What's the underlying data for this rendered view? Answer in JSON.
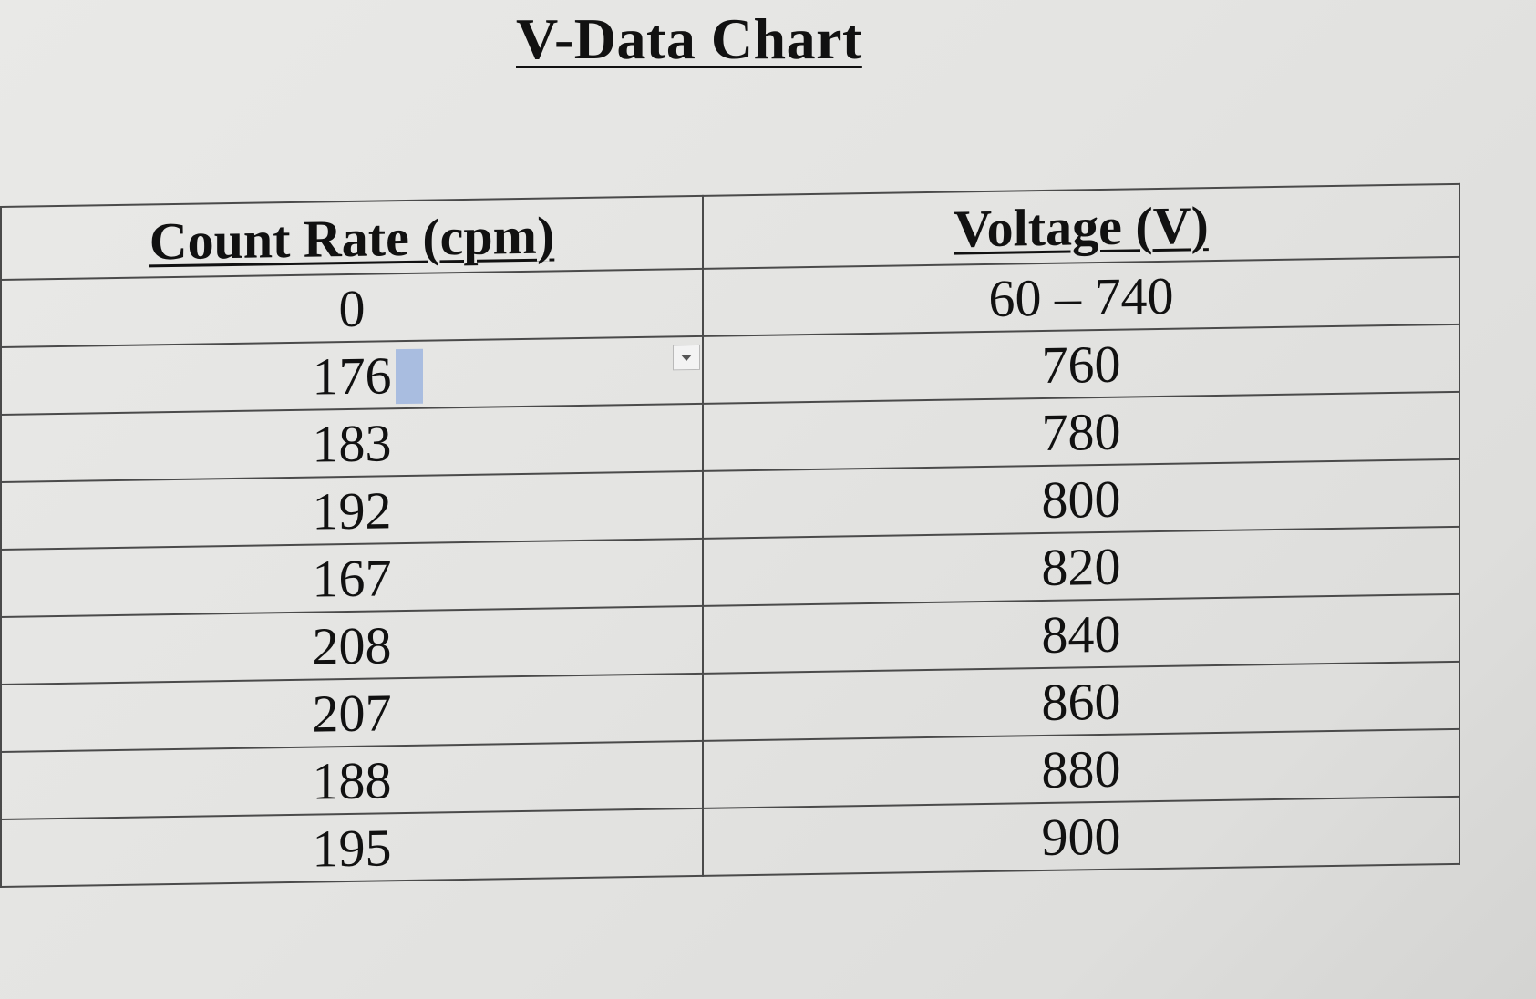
{
  "title": "V-Data Chart",
  "table": {
    "headers": [
      "Count Rate (cpm)",
      "Voltage (V)"
    ],
    "rows": [
      [
        "0",
        "60 – 740"
      ],
      [
        "176",
        "760"
      ],
      [
        "183",
        "780"
      ],
      [
        "192",
        "800"
      ],
      [
        "167",
        "820"
      ],
      [
        "208",
        "840"
      ],
      [
        "207",
        "860"
      ],
      [
        "188",
        "880"
      ],
      [
        "195",
        "900"
      ]
    ]
  },
  "icons": {
    "dropdown": "chevron-down-icon"
  }
}
